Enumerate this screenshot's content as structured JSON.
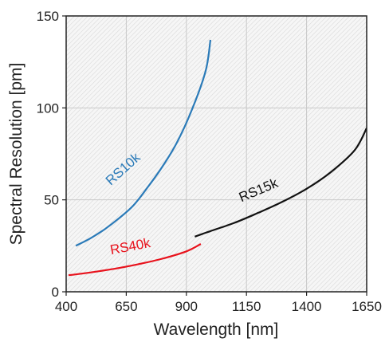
{
  "chart_data": {
    "type": "line",
    "title": "",
    "xlabel": "Wavelength [nm]",
    "ylabel": "Spectral Resolution [pm]",
    "xlim": [
      400,
      1650
    ],
    "ylim": [
      0,
      150
    ],
    "x_ticks": [
      400,
      650,
      900,
      1150,
      1400,
      1650
    ],
    "y_ticks": [
      0,
      50,
      100,
      150
    ],
    "x_tick_labels": [
      "400",
      "650",
      "900",
      "1150",
      "1400",
      "1650"
    ],
    "y_tick_labels": [
      "0",
      "50",
      "100",
      "150"
    ],
    "grid": true,
    "background": "hatched light gray",
    "legend": "none (series labeled inline)",
    "series": [
      {
        "name": "RS10k",
        "color": "#2a7ab8",
        "x": [
          440,
          500,
          560,
          620,
          680,
          740,
          800,
          860,
          920,
          980,
          1000
        ],
        "y": [
          25,
          29,
          34,
          40,
          47,
          57,
          68,
          81,
          98,
          120,
          137
        ]
      },
      {
        "name": "RS40k",
        "color": "#e8121c",
        "x": [
          410,
          500,
          600,
          700,
          800,
          900,
          960
        ],
        "y": [
          9,
          10.5,
          12.5,
          15,
          18,
          22,
          26
        ]
      },
      {
        "name": "RS15k",
        "color": "#111111",
        "x": [
          935,
          1000,
          1100,
          1200,
          1300,
          1400,
          1500,
          1600,
          1650
        ],
        "y": [
          30,
          33,
          37.5,
          43,
          49,
          56,
          65,
          77,
          89
        ]
      }
    ]
  }
}
